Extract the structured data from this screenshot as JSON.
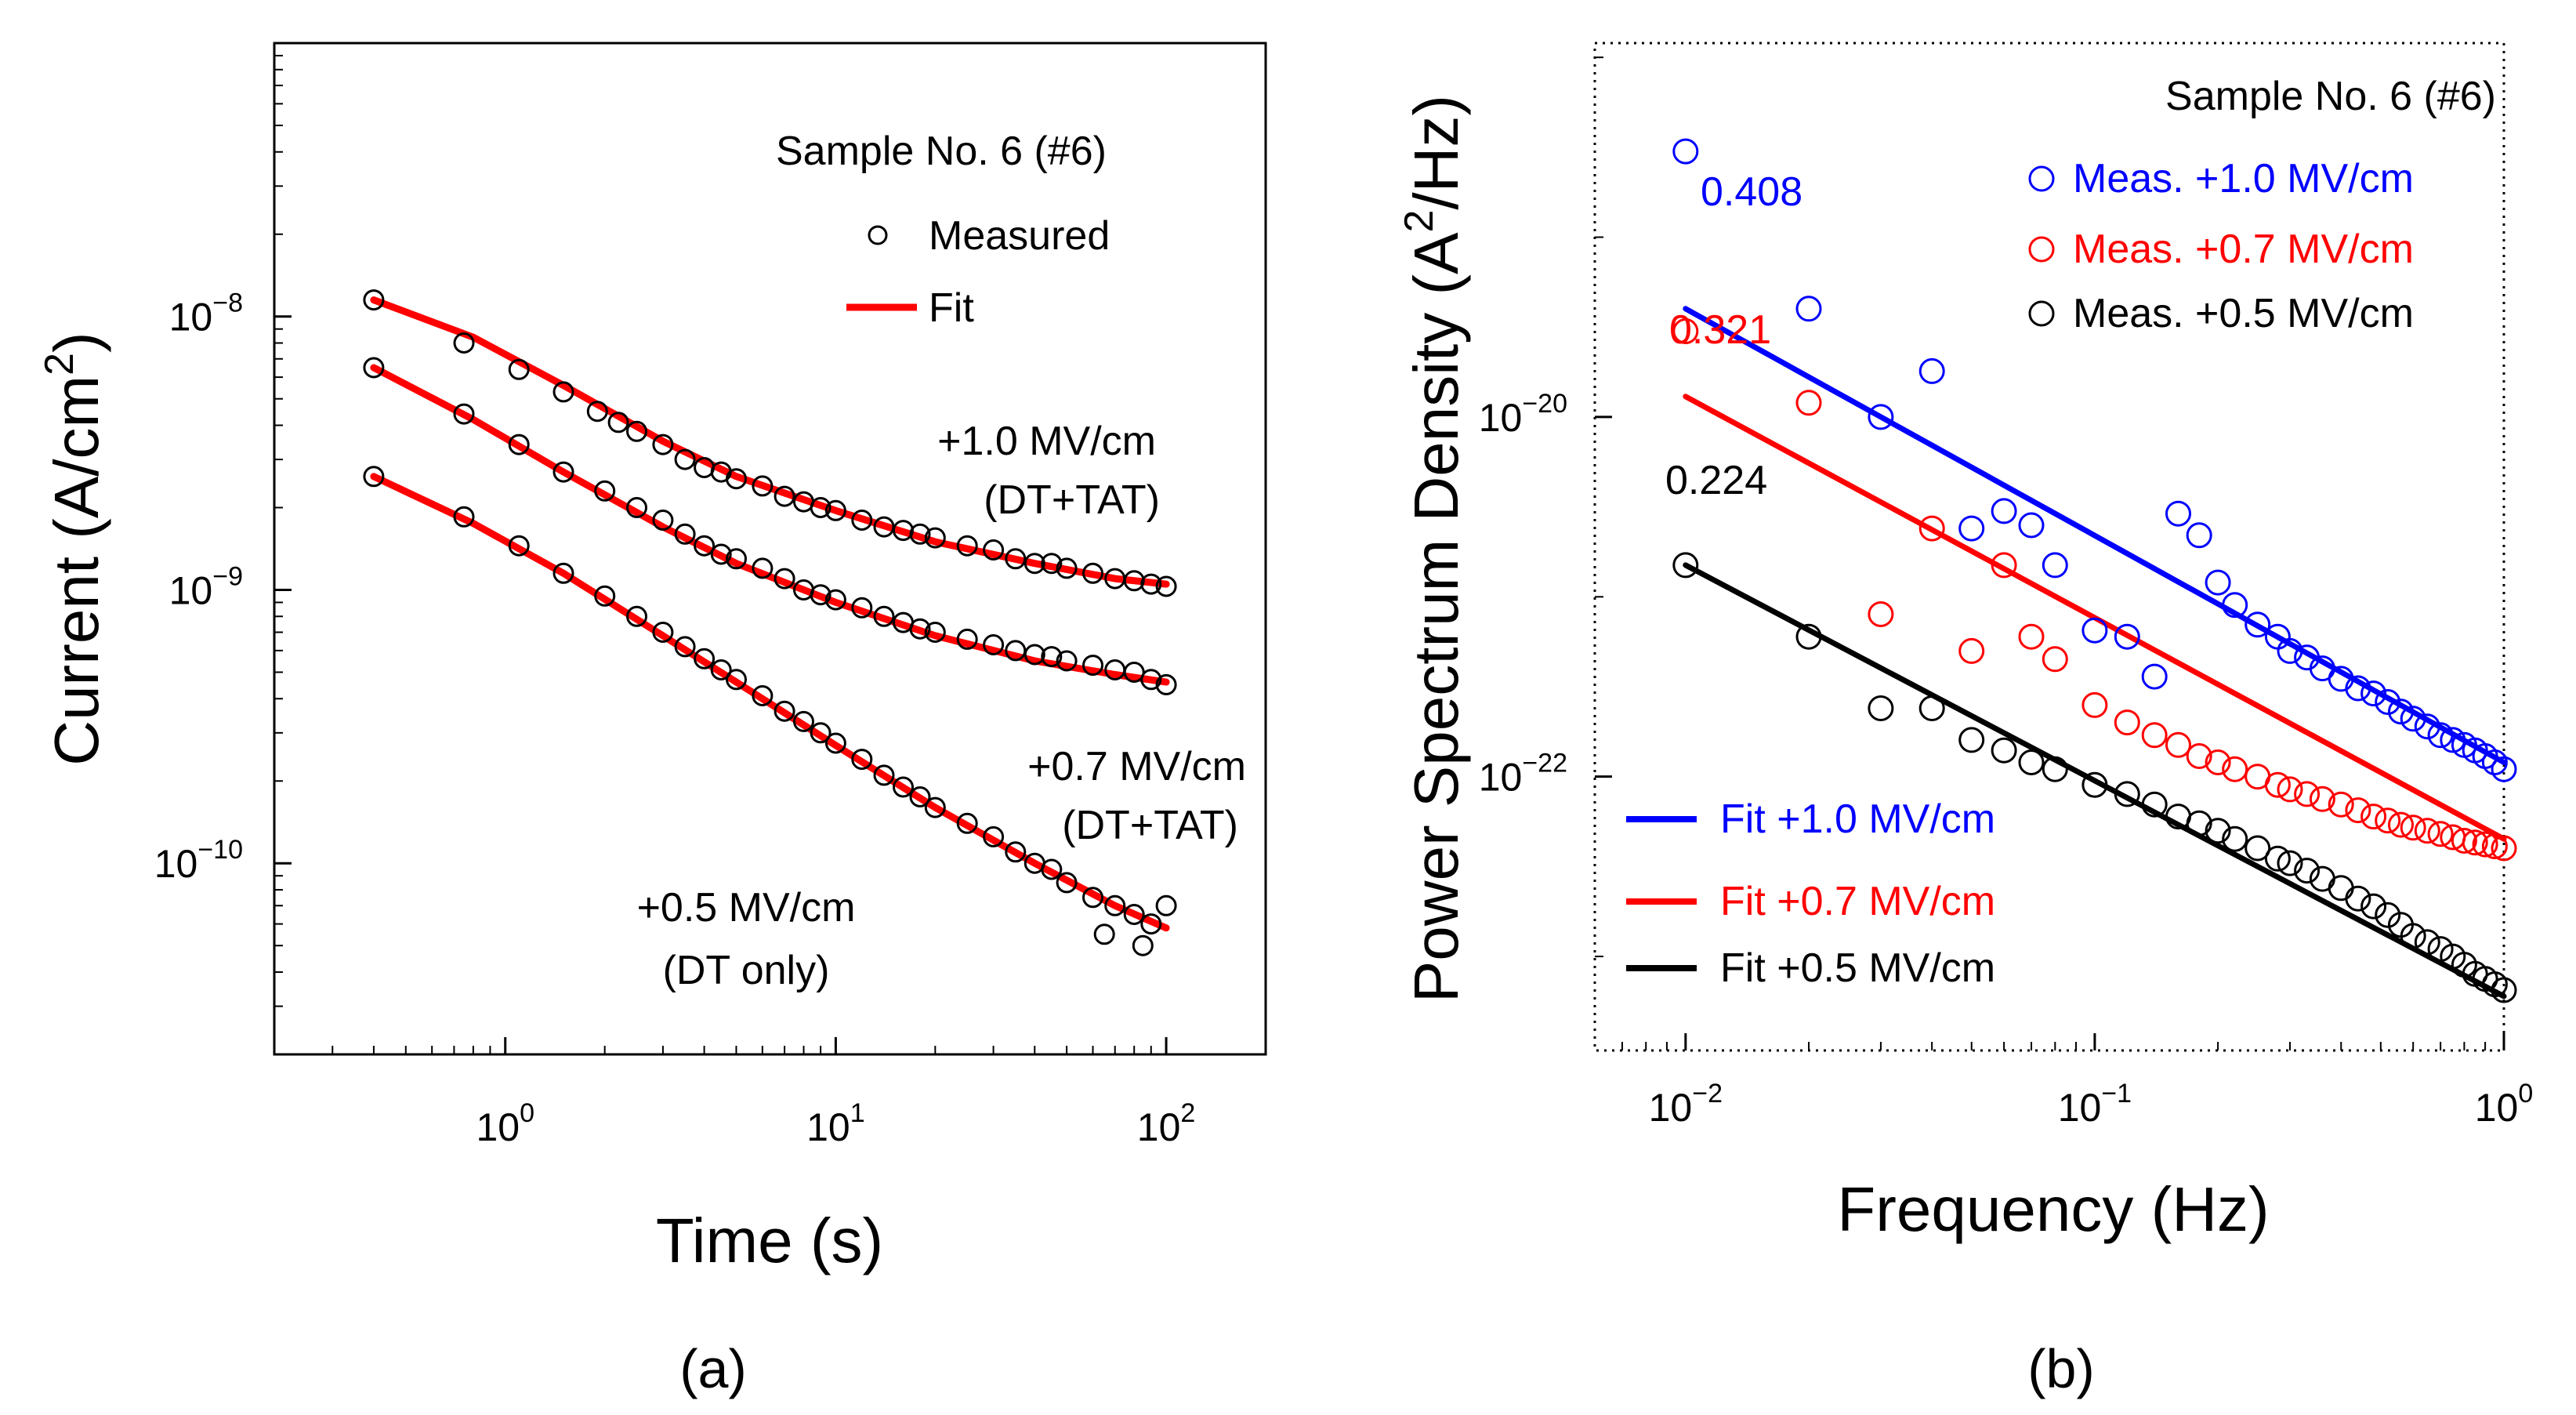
{
  "chart_data": [
    {
      "type": "scatter",
      "panel_label": "(a)",
      "xlabel": "Time (s)",
      "ylabel_prefix": "Current (A/cm",
      "ylabel_sup": "2",
      "ylabel_suffix": ")",
      "xscale": "log",
      "yscale": "log",
      "xlim": [
        0.2,
        200
      ],
      "ylim": [
        2e-11,
        1e-07
      ],
      "xticks": [
        {
          "value": 1,
          "base": "10",
          "exp": "0"
        },
        {
          "value": 10,
          "base": "10",
          "exp": "1"
        },
        {
          "value": 100,
          "base": "10",
          "exp": "2"
        }
      ],
      "yticks": [
        {
          "value": 1e-10,
          "base": "10",
          "exp": "−10"
        },
        {
          "value": 1e-09,
          "base": "10",
          "exp": "−9"
        },
        {
          "value": 1e-08,
          "base": "10",
          "exp": "−8"
        }
      ],
      "legend": {
        "title": "Sample No. 6 (#6)",
        "entries": [
          {
            "label": "Measured",
            "marker": "circle",
            "color": "#000000"
          },
          {
            "label": "Fit",
            "marker": "line",
            "color": "#ff0000"
          }
        ]
      },
      "series": [
        {
          "name": "+1.0 MV/cm",
          "mechanism": "(DT+TAT)",
          "measured_color": "#000000",
          "fit_color": "#ff0000",
          "fit": {
            "x": [
              0.4,
              0.8,
              1.5,
              3,
              5,
              10,
              20,
              40,
              70,
              100
            ],
            "y": [
              1.15e-08,
              8.4e-09,
              5.6e-09,
              3.5e-09,
              2.6e-09,
              1.95e-09,
              1.5e-09,
              1.25e-09,
              1.1e-09,
              1.05e-09
            ]
          },
          "measured": {
            "x": [
              0.4,
              0.75,
              1.1,
              1.5,
              1.9,
              2.2,
              2.5,
              3,
              3.5,
              4,
              4.5,
              5,
              6,
              7,
              8,
              9,
              10,
              12,
              14,
              16,
              18,
              20,
              25,
              30,
              35,
              40,
              45,
              50,
              60,
              70,
              80,
              90,
              100
            ],
            "y": [
              1.15e-08,
              8e-09,
              6.4e-09,
              5.3e-09,
              4.5e-09,
              4.1e-09,
              3.8e-09,
              3.4e-09,
              3e-09,
              2.8e-09,
              2.7e-09,
              2.55e-09,
              2.4e-09,
              2.2e-09,
              2.1e-09,
              2e-09,
              1.95e-09,
              1.8e-09,
              1.7e-09,
              1.65e-09,
              1.6e-09,
              1.55e-09,
              1.45e-09,
              1.4e-09,
              1.3e-09,
              1.25e-09,
              1.25e-09,
              1.2e-09,
              1.15e-09,
              1.1e-09,
              1.08e-09,
              1.05e-09,
              1.03e-09
            ]
          }
        },
        {
          "name": "+0.7 MV/cm",
          "mechanism": "(DT+TAT)",
          "measured_color": "#000000",
          "fit_color": "#ff0000",
          "fit": {
            "x": [
              0.4,
              0.8,
              1.5,
              3,
              5,
              10,
              20,
              40,
              70,
              100
            ],
            "y": [
              6.5e-09,
              4.2e-09,
              2.7e-09,
              1.7e-09,
              1.25e-09,
              9e-10,
              6.8e-10,
              5.5e-10,
              4.9e-10,
              4.6e-10
            ]
          },
          "measured": {
            "x": [
              0.4,
              0.75,
              1.1,
              1.5,
              2,
              2.5,
              3,
              3.5,
              4,
              4.5,
              5,
              6,
              7,
              8,
              9,
              10,
              12,
              14,
              16,
              18,
              20,
              25,
              30,
              35,
              40,
              45,
              50,
              60,
              70,
              80,
              90,
              100
            ],
            "y": [
              6.5e-09,
              4.4e-09,
              3.4e-09,
              2.7e-09,
              2.3e-09,
              2e-09,
              1.8e-09,
              1.6e-09,
              1.45e-09,
              1.35e-09,
              1.3e-09,
              1.2e-09,
              1.1e-09,
              1e-09,
              9.6e-10,
              9.2e-10,
              8.6e-10,
              8e-10,
              7.6e-10,
              7.2e-10,
              7e-10,
              6.6e-10,
              6.3e-10,
              6e-10,
              5.8e-10,
              5.7e-10,
              5.5e-10,
              5.3e-10,
              5.1e-10,
              5e-10,
              4.7e-10,
              4.5e-10
            ]
          }
        },
        {
          "name": "+0.5 MV/cm",
          "mechanism": "(DT only)",
          "measured_color": "#000000",
          "fit_color": "#ff0000",
          "fit": {
            "x": [
              0.4,
              0.8,
              1.5,
              3,
              5,
              10,
              20,
              40,
              70,
              100
            ],
            "y": [
              2.6e-09,
              1.75e-09,
              1.15e-09,
              6.8e-10,
              4.6e-10,
              2.7e-10,
              1.6e-10,
              1e-10,
              7e-11,
              5.8e-11
            ]
          },
          "measured": {
            "x": [
              0.4,
              0.75,
              1.1,
              1.5,
              2,
              2.5,
              3,
              3.5,
              4,
              4.5,
              5,
              6,
              7,
              8,
              9,
              10,
              12,
              14,
              16,
              18,
              20,
              25,
              30,
              35,
              40,
              45,
              50,
              60,
              65,
              70,
              80,
              85,
              90,
              100
            ],
            "y": [
              2.6e-09,
              1.85e-09,
              1.45e-09,
              1.15e-09,
              9.5e-10,
              8e-10,
              7e-10,
              6.2e-10,
              5.6e-10,
              5.1e-10,
              4.7e-10,
              4.1e-10,
              3.6e-10,
              3.3e-10,
              3e-10,
              2.75e-10,
              2.4e-10,
              2.1e-10,
              1.9e-10,
              1.75e-10,
              1.6e-10,
              1.4e-10,
              1.25e-10,
              1.1e-10,
              1e-10,
              9.5e-11,
              8.5e-11,
              7.5e-11,
              5.5e-11,
              7e-11,
              6.5e-11,
              5e-11,
              6e-11,
              7e-11
            ]
          }
        }
      ]
    },
    {
      "type": "scatter",
      "panel_label": "(b)",
      "xlabel": "Frequency (Hz)",
      "ylabel_prefix": "Power Spectrum Density (A",
      "ylabel_sup": "2",
      "ylabel_suffix": "/Hz)",
      "xscale": "log",
      "yscale": "log",
      "xlim": [
        0.006,
        1.0
      ],
      "ylim": [
        3e-24,
        1.2e-18
      ],
      "xticks": [
        {
          "value": 0.01,
          "base": "10",
          "exp": "−2"
        },
        {
          "value": 0.1,
          "base": "10",
          "exp": "−1"
        },
        {
          "value": 1,
          "base": "10",
          "exp": "0"
        }
      ],
      "yticks": [
        {
          "value": 1e-22,
          "base": "10",
          "exp": "−22"
        },
        {
          "value": 1e-20,
          "base": "10",
          "exp": "−20"
        }
      ],
      "legend": {
        "title": "Sample No. 6 (#6)",
        "measured_entries": [
          {
            "label": "Meas. +1.0 MV/cm",
            "marker": "circle",
            "color": "#0000ff"
          },
          {
            "label": "Meas. +0.7 MV/cm",
            "marker": "circle",
            "color": "#ff0000"
          },
          {
            "label": "Meas. +0.5 MV/cm",
            "marker": "circle",
            "color": "#000000"
          }
        ],
        "fit_entries": [
          {
            "label": "Fit +1.0 MV/cm",
            "marker": "line",
            "color": "#0000ff"
          },
          {
            "label": "Fit +0.7 MV/cm",
            "marker": "line",
            "color": "#ff0000"
          },
          {
            "label": "Fit +0.5 MV/cm",
            "marker": "line",
            "color": "#000000"
          }
        ]
      },
      "series": [
        {
          "name": "+1.0 MV/cm",
          "slope_label": "0.408",
          "color": "#0000ff",
          "fit": {
            "x": [
              0.01,
              1.0
            ],
            "y": [
              4e-20,
              1.2e-22
            ]
          },
          "measured": {
            "x": [
              0.01,
              0.02,
              0.03,
              0.04,
              0.05,
              0.06,
              0.07,
              0.08,
              0.1,
              0.12,
              0.14,
              0.16,
              0.18,
              0.2,
              0.22,
              0.25,
              0.28,
              0.3,
              0.33,
              0.36,
              0.4,
              0.44,
              0.48,
              0.52,
              0.56,
              0.6,
              0.65,
              0.7,
              0.75,
              0.8,
              0.85,
              0.9,
              0.95,
              1.0
            ],
            "y": [
              3e-19,
              4e-20,
              1e-20,
              1.8e-20,
              2.4e-21,
              3e-21,
              2.5e-21,
              1.5e-21,
              6.5e-22,
              6e-22,
              3.6e-22,
              2.9e-21,
              2.2e-21,
              1.2e-21,
              9e-22,
              7e-22,
              6e-22,
              5e-22,
              4.6e-22,
              4e-22,
              3.5e-22,
              3.1e-22,
              2.9e-22,
              2.6e-22,
              2.3e-22,
              2.1e-22,
              1.9e-22,
              1.7e-22,
              1.6e-22,
              1.5e-22,
              1.4e-22,
              1.3e-22,
              1.2e-22,
              1.1e-22
            ]
          }
        },
        {
          "name": "+0.7 MV/cm",
          "slope_label": "0.321",
          "color": "#ff0000",
          "fit": {
            "x": [
              0.01,
              1.0
            ],
            "y": [
              1.3e-20,
              4.5e-23
            ]
          },
          "measured": {
            "x": [
              0.01,
              0.02,
              0.03,
              0.04,
              0.05,
              0.06,
              0.07,
              0.08,
              0.1,
              0.12,
              0.14,
              0.16,
              0.18,
              0.2,
              0.22,
              0.25,
              0.28,
              0.3,
              0.33,
              0.36,
              0.4,
              0.44,
              0.48,
              0.52,
              0.56,
              0.6,
              0.65,
              0.7,
              0.75,
              0.8,
              0.85,
              0.9,
              0.95,
              1.0
            ],
            "y": [
              3e-20,
              1.2e-20,
              8e-22,
              2.4e-21,
              5e-22,
              1.5e-21,
              6e-22,
              4.5e-22,
              2.5e-22,
              2e-22,
              1.7e-22,
              1.5e-22,
              1.3e-22,
              1.2e-22,
              1.1e-22,
              1e-22,
              9e-23,
              8.5e-23,
              8e-23,
              7.5e-23,
              7e-23,
              6.5e-23,
              6e-23,
              5.7e-23,
              5.4e-23,
              5.2e-23,
              5e-23,
              4.8e-23,
              4.6e-23,
              4.4e-23,
              4.3e-23,
              4.2e-23,
              4.1e-23,
              4e-23
            ]
          }
        },
        {
          "name": "+0.5 MV/cm",
          "slope_label": "0.224",
          "color": "#000000",
          "fit": {
            "x": [
              0.01,
              1.0
            ],
            "y": [
              1.5e-21,
              6e-24
            ]
          },
          "measured": {
            "x": [
              0.01,
              0.02,
              0.03,
              0.04,
              0.05,
              0.06,
              0.07,
              0.08,
              0.1,
              0.12,
              0.14,
              0.16,
              0.18,
              0.2,
              0.22,
              0.25,
              0.28,
              0.3,
              0.33,
              0.36,
              0.4,
              0.44,
              0.48,
              0.52,
              0.56,
              0.6,
              0.65,
              0.7,
              0.75,
              0.8,
              0.85,
              0.9,
              0.95,
              1.0
            ],
            "y": [
              1.5e-21,
              6e-22,
              2.4e-22,
              2.4e-22,
              1.6e-22,
              1.4e-22,
              1.2e-22,
              1.1e-22,
              9e-23,
              8e-23,
              7e-23,
              6e-23,
              5.5e-23,
              5e-23,
              4.5e-23,
              4e-23,
              3.5e-23,
              3.3e-23,
              3e-23,
              2.7e-23,
              2.4e-23,
              2.1e-23,
              1.9e-23,
              1.7e-23,
              1.5e-23,
              1.3e-23,
              1.2e-23,
              1.1e-23,
              1e-23,
              9e-24,
              8e-24,
              7.5e-24,
              7e-24,
              6.5e-24
            ]
          }
        }
      ]
    }
  ]
}
